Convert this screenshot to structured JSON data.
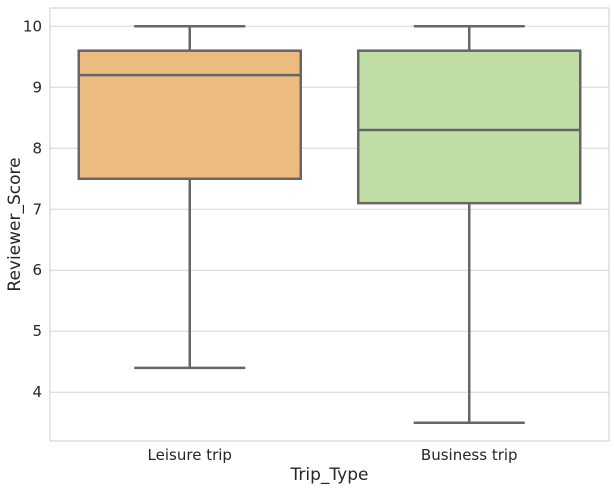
{
  "chart_data": {
    "type": "boxplot",
    "title": "",
    "xlabel": "Trip_Type",
    "ylabel": "Reviewer_Score",
    "ylim": [
      3.2,
      10.3
    ],
    "yticks": [
      4,
      5,
      6,
      7,
      8,
      9,
      10
    ],
    "grid": "horizontal",
    "categories": [
      "Leisure trip",
      "Business trip"
    ],
    "boxes": [
      {
        "category": "Leisure trip",
        "whisker_low": 4.4,
        "q1": 7.5,
        "median": 9.2,
        "q3": 9.6,
        "whisker_high": 10.0,
        "color": "#EBBB7F"
      },
      {
        "category": "Business trip",
        "whisker_low": 3.5,
        "q1": 7.1,
        "median": 8.3,
        "q3": 9.6,
        "whisker_high": 10.0,
        "color": "#C1DDA6"
      }
    ],
    "line_color": "#666666",
    "grid_color": "#d6d6d6",
    "frame_color": "#cccccc"
  }
}
